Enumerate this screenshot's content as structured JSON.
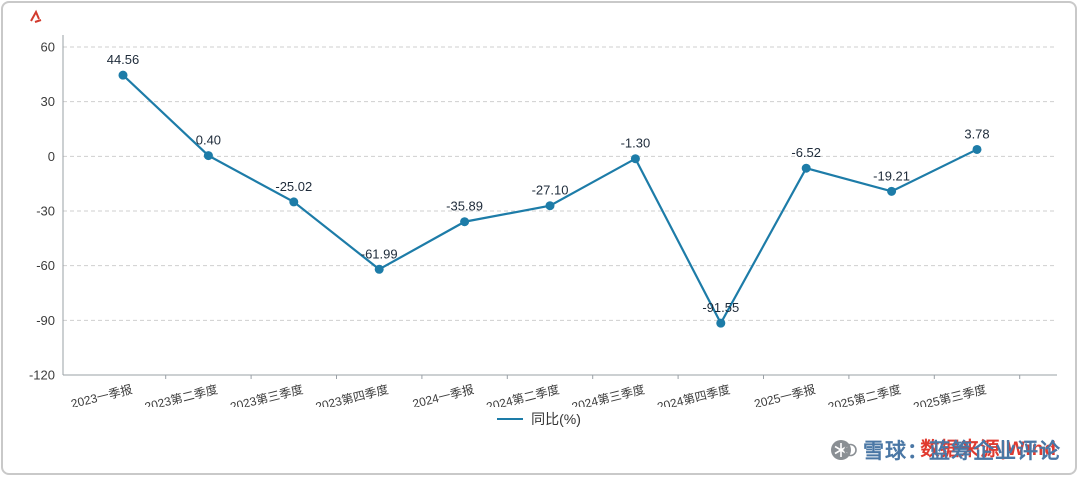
{
  "legend": {
    "label": "同比(%)"
  },
  "footer": {
    "source_text": "数据来源|Wind",
    "account_text": "雪球：蓝筹企业评论"
  },
  "colors": {
    "line": "#1d7ca8",
    "grid": "#cfcfcf",
    "axis": "#9aa0a6",
    "source_red": "#e03a2f",
    "account_blue": "#4a77a5"
  },
  "chart_data": {
    "type": "line",
    "title": "",
    "xlabel": "",
    "ylabel": "",
    "series_name": "同比(%)",
    "categories": [
      "2023一季报",
      "2023第二季度",
      "2023第三季度",
      "2023第四季度",
      "2024一季报",
      "2024第二季度",
      "2024第三季度",
      "2024第四季度",
      "2025一季报",
      "2025第二季度",
      "2025第三季度"
    ],
    "values": [
      44.56,
      0.4,
      -25.02,
      -61.99,
      -35.89,
      -27.1,
      -1.3,
      -91.55,
      -6.52,
      -19.21,
      3.78
    ],
    "value_labels": [
      "44.56",
      "0.40",
      "-25.02",
      "-61.99",
      "-35.89",
      "-27.10",
      "-1.30",
      "-91.55",
      "-6.52",
      "-19.21",
      "3.78"
    ],
    "ylim": [
      -120,
      60
    ],
    "yticks": [
      60,
      30,
      0,
      -30,
      -60,
      -90,
      -120
    ],
    "grid": "horizontal-dashed",
    "legend_position": "bottom",
    "line_color": "#1d7ca8"
  }
}
